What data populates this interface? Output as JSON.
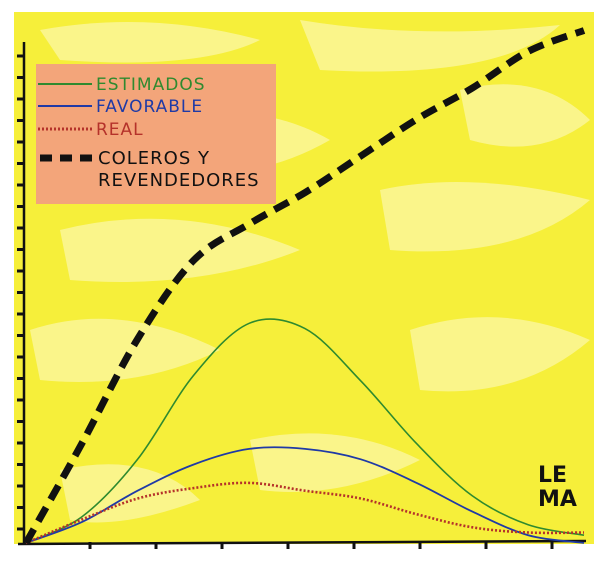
{
  "colors": {
    "background_yellow": "#f6ef3a",
    "light_yellow": "#fbf7a6",
    "legend_box": "#f3a57a",
    "estimados": "#2f8a2f",
    "favorable": "#1f3aa6",
    "real": "#b5322a",
    "coleros": "#111111"
  },
  "legend": {
    "estimados": "ESTIMADOS",
    "favorable": "FAVORABLE",
    "real": "REAL",
    "coleros_line1": "COLEROS Y",
    "coleros_line2": "REVENDEDORES"
  },
  "signature": "LEMA",
  "chart_data": {
    "type": "line",
    "title": "",
    "xlabel": "",
    "ylabel": "",
    "xlim": [
      0,
      10
    ],
    "ylim": [
      0,
      10
    ],
    "legend_position": "top-left",
    "series": [
      {
        "name": "ESTIMADOS",
        "style": "solid-thin",
        "x": [
          0,
          1,
          2,
          3,
          4,
          5,
          6,
          7,
          8,
          9,
          10
        ],
        "y": [
          0,
          0.5,
          1.6,
          3.2,
          4.2,
          4.1,
          3.1,
          1.9,
          0.9,
          0.35,
          0.15
        ]
      },
      {
        "name": "FAVORABLE",
        "style": "solid-thin",
        "x": [
          0,
          1,
          2,
          3,
          4,
          5,
          6,
          7,
          8,
          9,
          10
        ],
        "y": [
          0,
          0.4,
          1.0,
          1.5,
          1.8,
          1.8,
          1.6,
          1.15,
          0.6,
          0.15,
          0.0
        ]
      },
      {
        "name": "REAL",
        "style": "dotted",
        "x": [
          0,
          1,
          2,
          3,
          4,
          5,
          6,
          7,
          8,
          9,
          10
        ],
        "y": [
          0,
          0.45,
          0.85,
          1.05,
          1.15,
          1.0,
          0.85,
          0.55,
          0.3,
          0.2,
          0.2
        ]
      },
      {
        "name": "COLEROS Y REVENDEDORES",
        "style": "dashed-thick",
        "x": [
          0,
          1,
          2,
          3,
          4,
          5,
          6,
          7,
          8,
          9,
          10
        ],
        "y": [
          0,
          1.9,
          3.9,
          5.4,
          6.1,
          6.7,
          7.4,
          8.1,
          8.7,
          9.4,
          9.8
        ]
      }
    ]
  }
}
